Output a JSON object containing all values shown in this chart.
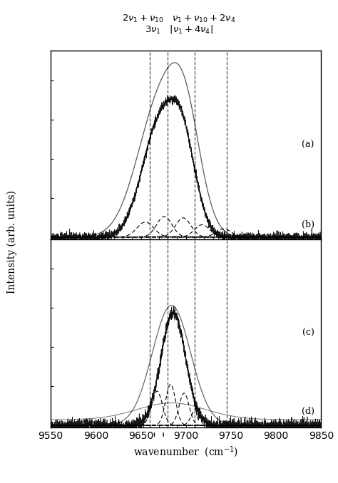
{
  "title_line1": "$2\\nu_1 + \\nu_{10}$   $\\nu_1 + \\nu_{10} + 2\\nu_4$",
  "title_line2": "$3\\nu_1$   $|\\nu_1 + 4\\nu_4|$",
  "xlabel": "wavenumber  (cm$^{-1}$)",
  "ylabel": "Intensity (arb. units)",
  "xmin": 9550,
  "xmax": 9850,
  "dashed_lines": [
    9660,
    9680,
    9710,
    9745
  ],
  "tick_marks": [
    9665,
    9675
  ],
  "background_color": "#ffffff",
  "noise_seed": 42
}
